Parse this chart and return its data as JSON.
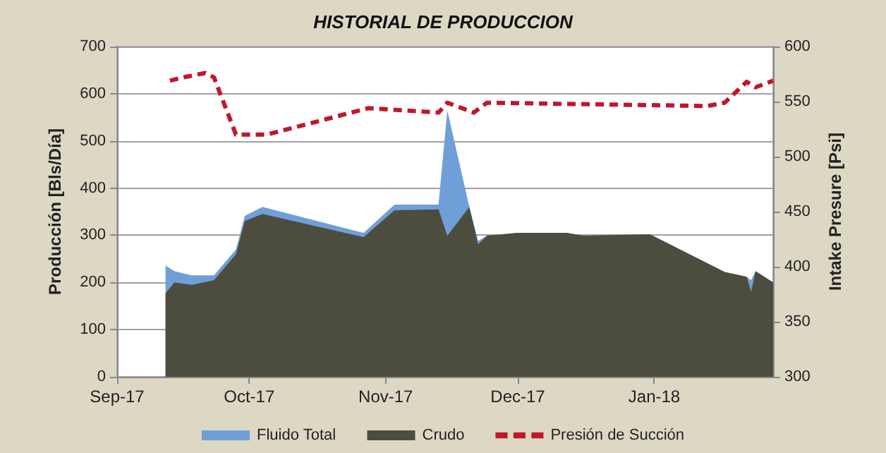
{
  "chart_data": {
    "type": "area",
    "title": "HISTORIAL DE PRODUCCION",
    "ylabel": "Producción [Bls/Día]",
    "y2label": "Intake Presure [Psi]",
    "xlim": [
      "2017-09-01",
      "2018-01-28"
    ],
    "xticks": [
      {
        "value": "2017-09-01",
        "label": "Sep-17"
      },
      {
        "value": "2017-10-01",
        "label": "Oct-17"
      },
      {
        "value": "2017-11-01",
        "label": "Nov-17"
      },
      {
        "value": "2017-12-01",
        "label": "Dec-17"
      },
      {
        "value": "2018-01-01",
        "label": "Jan-18"
      }
    ],
    "ylim": [
      0,
      700
    ],
    "yticks": [
      0,
      100,
      200,
      300,
      400,
      500,
      600,
      700
    ],
    "y2lim": [
      300,
      600
    ],
    "y2ticks": [
      300,
      350,
      400,
      450,
      500,
      550,
      600
    ],
    "grid": "y",
    "legend": "bottom",
    "series": [
      {
        "name": "Fluido Total",
        "color": "#6f9fd8",
        "x": [
          "2017-09-12",
          "2017-09-14",
          "2017-09-18",
          "2017-09-23",
          "2017-09-28",
          "2017-09-30",
          "2017-10-04",
          "2017-10-27",
          "2017-11-03",
          "2017-11-13",
          "2017-11-15",
          "2017-11-20",
          "2017-11-22",
          "2017-11-24",
          "2017-12-01",
          "2017-12-12",
          "2017-12-16",
          "2017-12-31",
          "2018-01-17",
          "2018-01-22",
          "2018-01-23",
          "2018-01-24",
          "2018-01-28"
        ],
        "values": [
          236,
          224,
          215,
          215,
          270,
          341,
          360,
          305,
          365,
          365,
          565,
          360,
          288,
          299,
          305,
          305,
          299,
          302,
          222,
          212,
          205,
          224,
          200
        ]
      },
      {
        "name": "Crudo",
        "color": "#4d4d3f",
        "x": [
          "2017-09-12",
          "2017-09-14",
          "2017-09-18",
          "2017-09-23",
          "2017-09-28",
          "2017-09-30",
          "2017-10-04",
          "2017-10-27",
          "2017-11-03",
          "2017-11-13",
          "2017-11-15",
          "2017-11-20",
          "2017-11-22",
          "2017-11-24",
          "2017-12-01",
          "2017-12-12",
          "2017-12-16",
          "2017-12-31",
          "2018-01-17",
          "2018-01-22",
          "2018-01-23",
          "2018-01-24",
          "2018-01-28"
        ],
        "values": [
          177,
          200,
          195,
          205,
          260,
          330,
          345,
          296,
          353,
          355,
          299,
          360,
          281,
          299,
          305,
          305,
          299,
          302,
          222,
          212,
          180,
          224,
          200
        ]
      },
      {
        "name": "Presión de Succión",
        "type": "line",
        "axis": "y2",
        "color": "#c0172a",
        "line_style": "dashed",
        "marker": "none",
        "x": [
          "2017-09-13",
          "2017-09-16",
          "2017-09-21",
          "2017-09-23",
          "2017-09-28",
          "2017-10-05",
          "2017-10-28",
          "2017-11-13",
          "2017-11-15",
          "2017-11-21",
          "2017-11-24",
          "2018-01-13",
          "2018-01-17",
          "2018-01-22",
          "2018-01-24",
          "2018-01-28"
        ],
        "values": [
          569,
          572,
          576,
          572,
          520,
          520,
          544,
          540,
          549,
          540,
          549,
          546,
          549,
          568,
          563,
          569
        ]
      }
    ]
  }
}
